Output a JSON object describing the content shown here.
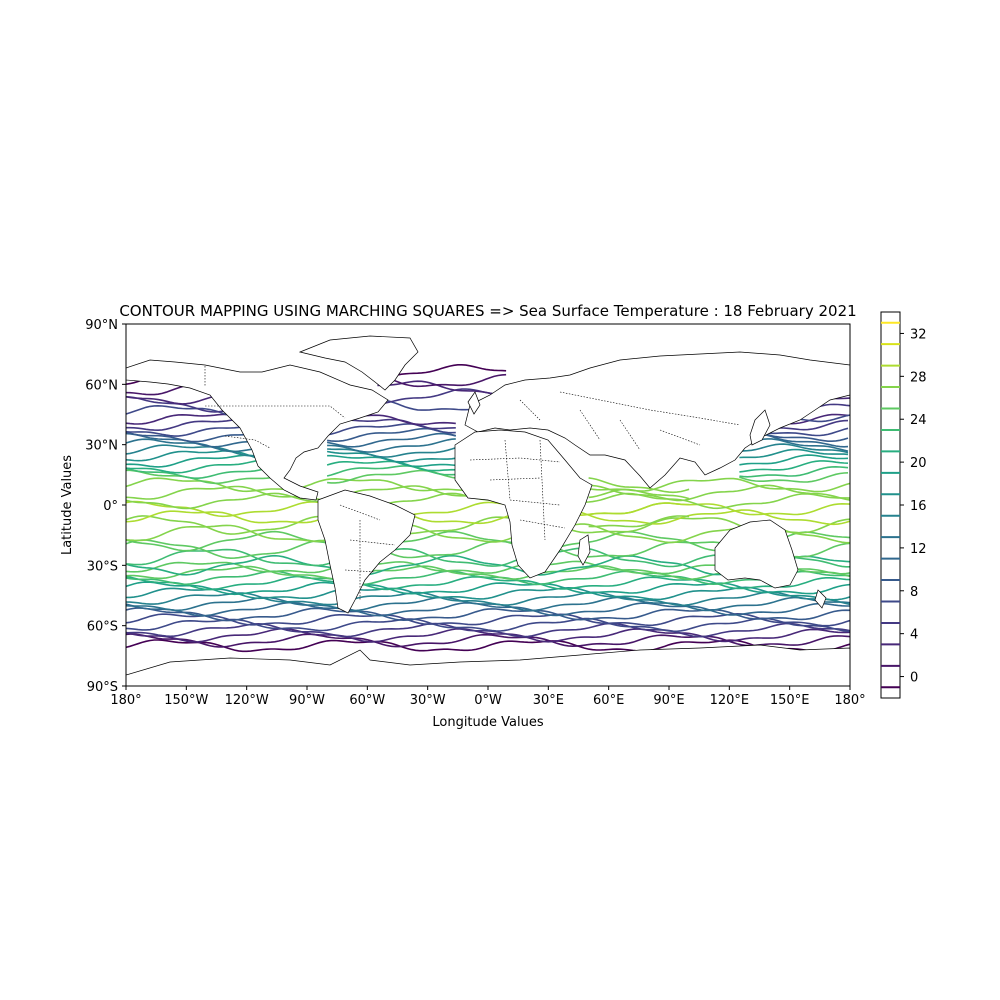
{
  "chart_data": {
    "type": "contour",
    "title": "CONTOUR MAPPING USING MARCHING SQUARES => Sea Surface Temperature : 18 February 2021",
    "xlabel": "Longitude Values",
    "ylabel": "Latitude Values",
    "xlim": [
      -180,
      180
    ],
    "ylim": [
      -90,
      90
    ],
    "x_ticks": [
      {
        "value": -180,
        "label": "180°"
      },
      {
        "value": -150,
        "label": "150°W"
      },
      {
        "value": -120,
        "label": "120°W"
      },
      {
        "value": -90,
        "label": "90°W"
      },
      {
        "value": -60,
        "label": "60°W"
      },
      {
        "value": -30,
        "label": "30°W"
      },
      {
        "value": 0,
        "label": "0°W"
      },
      {
        "value": 30,
        "label": "30°E"
      },
      {
        "value": 60,
        "label": "60°E"
      },
      {
        "value": 90,
        "label": "90°E"
      },
      {
        "value": 120,
        "label": "120°E"
      },
      {
        "value": 150,
        "label": "150°E"
      },
      {
        "value": 180,
        "label": "180°"
      }
    ],
    "y_ticks": [
      {
        "value": 90,
        "label": "90°N"
      },
      {
        "value": 60,
        "label": "60°N"
      },
      {
        "value": 30,
        "label": "30°N"
      },
      {
        "value": 0,
        "label": "0°"
      },
      {
        "value": -30,
        "label": "30°S"
      },
      {
        "value": -60,
        "label": "60°S"
      },
      {
        "value": -90,
        "label": "90°S"
      }
    ],
    "colorbar": {
      "range": [
        -2,
        34
      ],
      "levels": [
        -1,
        1,
        3,
        5,
        7,
        9,
        11,
        13,
        15,
        17,
        19,
        21,
        23,
        25,
        27,
        29,
        31,
        33
      ],
      "tick_values": [
        0,
        4,
        8,
        12,
        16,
        20,
        24,
        28,
        32
      ],
      "tick_labels": [
        "0",
        "4",
        "8",
        "12",
        "16",
        "20",
        "24",
        "28",
        "32"
      ],
      "colormap": "viridis"
    },
    "level_colors": [
      "#440154",
      "#481668",
      "#482878",
      "#443983",
      "#3e4989",
      "#375a8c",
      "#31688e",
      "#2c728e",
      "#26828e",
      "#21918c",
      "#1fa088",
      "#28ae80",
      "#3fbc73",
      "#5ec962",
      "#84d44b",
      "#addc30",
      "#d8e219",
      "#fde725"
    ],
    "grid": false
  }
}
